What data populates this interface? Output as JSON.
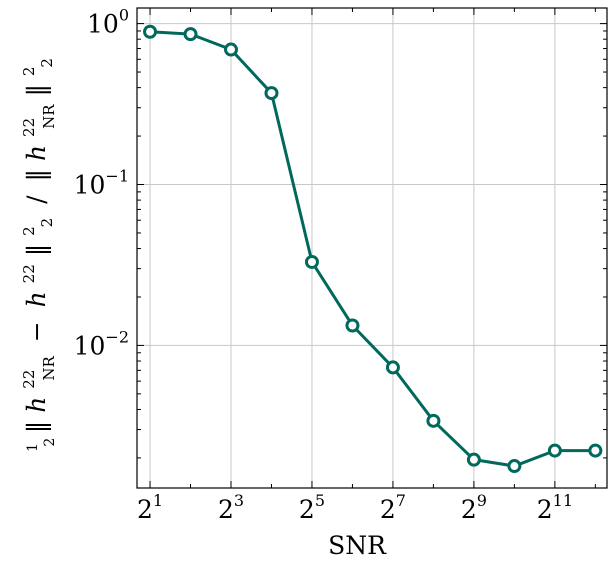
{
  "chart_data": {
    "type": "line",
    "xlabel": "SNR",
    "ylabel_parts": {
      "frac_num": "1",
      "frac_den": "2",
      "h": "h",
      "sup": "22",
      "sub": "NR",
      "minus": "−",
      "slash": "/",
      "norm_sub": "2",
      "norm_sup": "2"
    },
    "x_scale": "log2",
    "y_scale": "log10",
    "xlim": [
      1.6,
      5000
    ],
    "ylim": [
      0.0013,
      1.25
    ],
    "grid": true,
    "color": "#00695c",
    "x_ticks": [
      {
        "value": 2,
        "base": "2",
        "exp": "1"
      },
      {
        "value": 8,
        "base": "2",
        "exp": "3"
      },
      {
        "value": 32,
        "base": "2",
        "exp": "5"
      },
      {
        "value": 128,
        "base": "2",
        "exp": "7"
      },
      {
        "value": 512,
        "base": "2",
        "exp": "9"
      },
      {
        "value": 2048,
        "base": "2",
        "exp": "11"
      }
    ],
    "y_ticks": [
      {
        "value": 1,
        "base": "10",
        "exp": "0"
      },
      {
        "value": 0.1,
        "base": "10",
        "exp": "−1"
      },
      {
        "value": 0.01,
        "base": "10",
        "exp": "−2"
      }
    ],
    "series": [
      {
        "x": [
          2,
          4,
          8,
          16,
          32,
          64,
          128,
          256,
          512,
          1024,
          2048,
          4096
        ],
        "values": [
          0.89,
          0.86,
          0.69,
          0.37,
          0.033,
          0.0133,
          0.0073,
          0.0034,
          0.00195,
          0.00178,
          0.00222,
          0.00222
        ]
      }
    ]
  }
}
